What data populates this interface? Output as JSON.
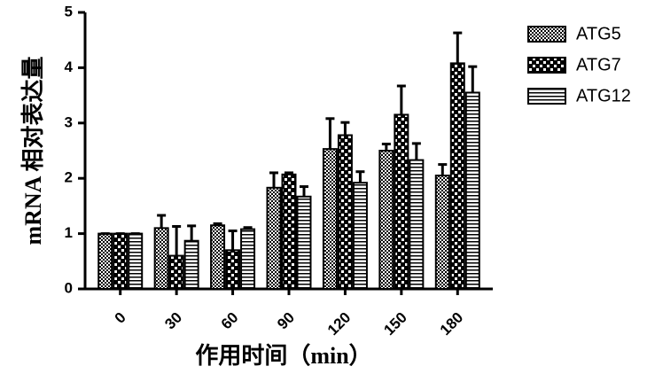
{
  "chart_data": {
    "type": "bar",
    "x_label": "作用时间（min）",
    "y_label": "mRNA 相对表达量",
    "categories": [
      "0",
      "30",
      "60",
      "90",
      "120",
      "150",
      "180"
    ],
    "series": [
      {
        "name": "ATG5",
        "color": "#000000",
        "values": [
          1.0,
          1.1,
          1.15,
          1.83,
          2.53,
          2.5,
          2.05
        ],
        "errors": [
          0.0,
          0.23,
          0.03,
          0.27,
          0.55,
          0.12,
          0.2
        ]
      },
      {
        "name": "ATG7",
        "color": "#000000",
        "values": [
          1.0,
          0.6,
          0.7,
          2.07,
          2.78,
          3.15,
          4.08
        ],
        "errors": [
          0.0,
          0.53,
          0.35,
          0.03,
          0.23,
          0.52,
          0.55
        ]
      },
      {
        "name": "ATG12",
        "color": "#000000",
        "values": [
          1.0,
          0.87,
          1.08,
          1.67,
          1.92,
          2.33,
          3.55
        ],
        "errors": [
          0.0,
          0.27,
          0.03,
          0.18,
          0.2,
          0.3,
          0.47
        ]
      }
    ],
    "ylim": [
      0,
      5
    ],
    "yticks": [
      0,
      1,
      2,
      3,
      4,
      5
    ],
    "legend": "right"
  }
}
